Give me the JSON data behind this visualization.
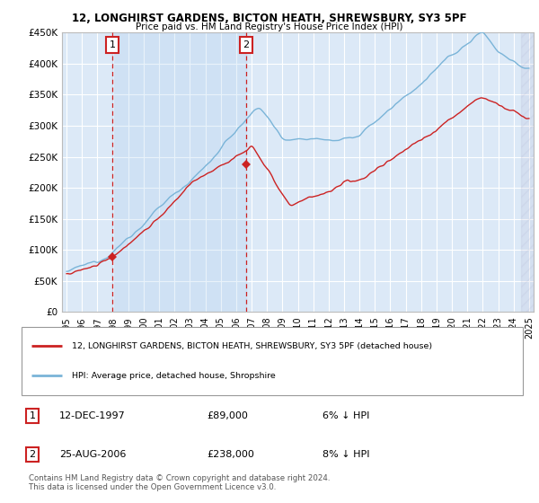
{
  "title_line1": "12, LONGHIRST GARDENS, BICTON HEATH, SHREWSBURY, SY3 5PF",
  "title_line2": "Price paid vs. HM Land Registry's House Price Index (HPI)",
  "ylim": [
    0,
    450000
  ],
  "yticks": [
    0,
    50000,
    100000,
    150000,
    200000,
    250000,
    300000,
    350000,
    400000,
    450000
  ],
  "ytick_labels": [
    "£0",
    "£50K",
    "£100K",
    "£150K",
    "£200K",
    "£250K",
    "£300K",
    "£350K",
    "£400K",
    "£450K"
  ],
  "background_color": "#dce9f7",
  "grid_color": "#ffffff",
  "hpi_color": "#7ab4d8",
  "price_color": "#cc2222",
  "sale1_x": 1997.96,
  "sale1_y": 89000,
  "sale2_x": 2006.65,
  "sale2_y": 238000,
  "vline_color": "#cc2222",
  "annotation_box_color": "#cc2222",
  "legend_label_price": "12, LONGHIRST GARDENS, BICTON HEATH, SHREWSBURY, SY3 5PF (detached house)",
  "legend_label_hpi": "HPI: Average price, detached house, Shropshire",
  "footnote": "Contains HM Land Registry data © Crown copyright and database right 2024.\nThis data is licensed under the Open Government Licence v3.0.",
  "hatch_region_start": 2024.5,
  "xlim_left": 1994.7,
  "xlim_right": 2025.3
}
